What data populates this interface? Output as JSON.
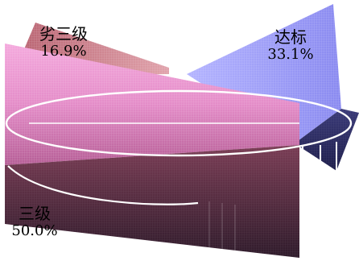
{
  "chart_data": {
    "type": "pie",
    "title": "",
    "legend": "none",
    "slices": [
      {
        "label": "劣三级",
        "percent": "16.9%",
        "value": 16.9,
        "color": "#C9747E"
      },
      {
        "label": "达标",
        "percent": "33.1%",
        "value": 33.1,
        "color": "#8F8FF0"
      },
      {
        "label": "三级",
        "percent": "50.0%",
        "value": 50.0,
        "color": "#E48CC8"
      }
    ]
  }
}
